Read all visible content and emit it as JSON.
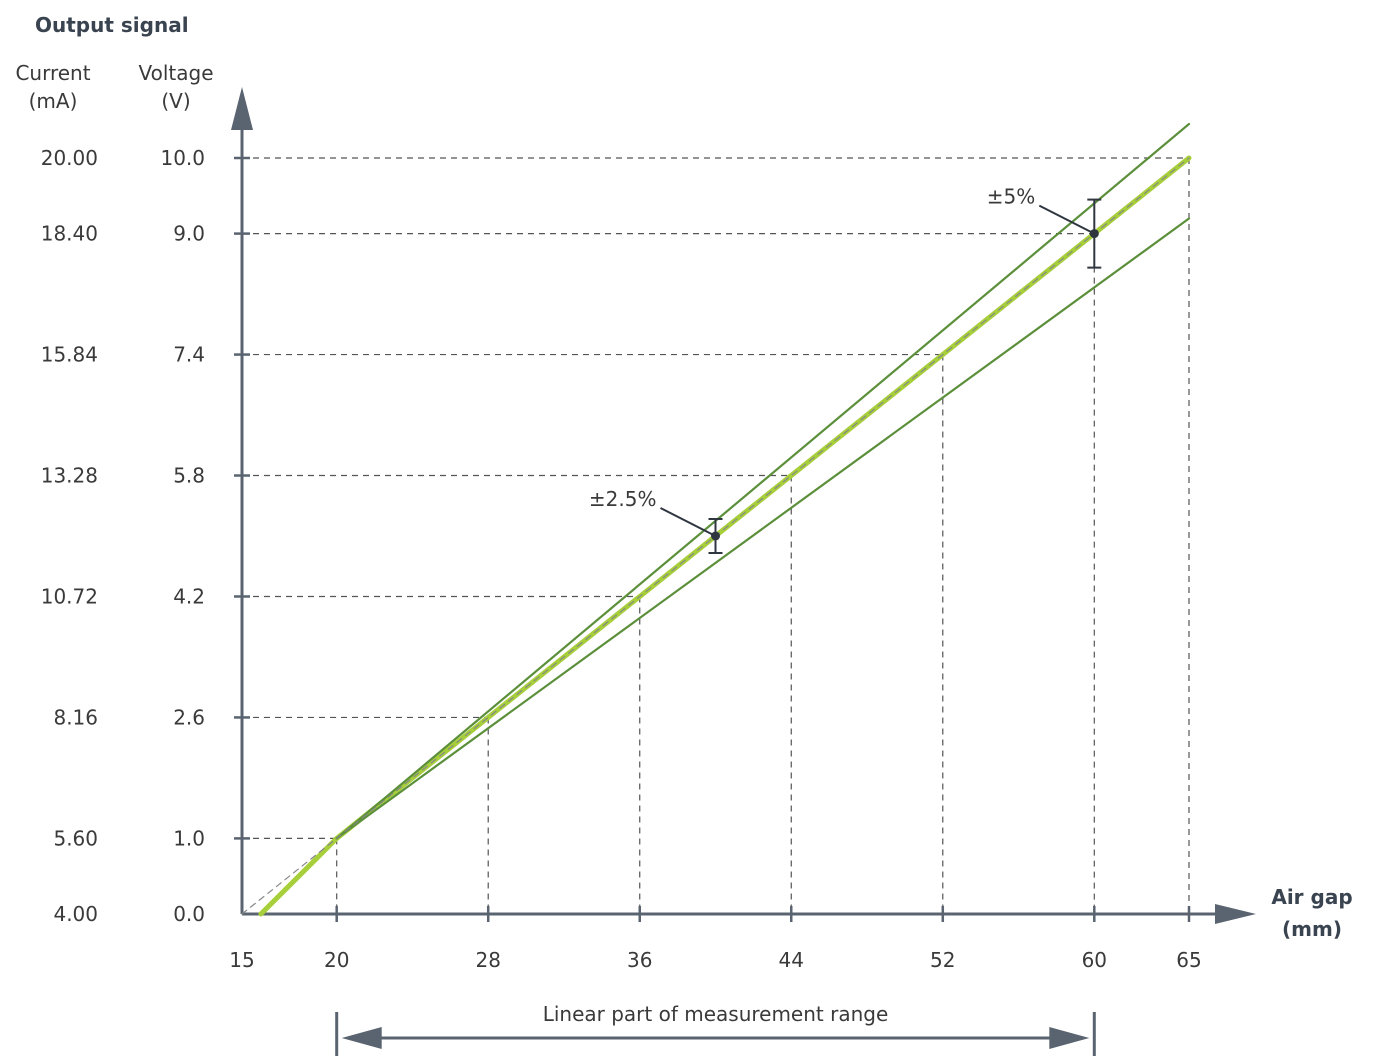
{
  "chart_data": {
    "type": "line",
    "title": "Output signal",
    "y_current_label": [
      "Current",
      "(mA)"
    ],
    "y_voltage_label": [
      "Voltage",
      "(V)"
    ],
    "xlabel": [
      "Air gap",
      "(mm)"
    ],
    "x_ticks": [
      15,
      20,
      28,
      36,
      44,
      52,
      60,
      65
    ],
    "x_tick_labels": [
      "15",
      "20",
      "28",
      "36",
      "44",
      "52",
      "60",
      "65"
    ],
    "y_ticks_voltage": [
      0.0,
      1.0,
      2.6,
      4.2,
      5.8,
      7.4,
      9.0,
      10.0
    ],
    "y_tick_labels_voltage": [
      "0.0",
      "1.0",
      "2.6",
      "4.2",
      "5.8",
      "7.4",
      "9.0",
      "10.0"
    ],
    "y_tick_labels_current": [
      "4.00",
      "5.60",
      "8.16",
      "10.72",
      "13.28",
      "15.84",
      "18.40",
      "20.00"
    ],
    "xlim": [
      15,
      65
    ],
    "ylim": [
      0,
      10
    ],
    "series": [
      {
        "role": "signal",
        "color": "#a6cf3a",
        "points": [
          [
            16,
            0
          ],
          [
            20,
            1.0
          ],
          [
            60,
            9.0
          ],
          [
            65,
            10.0
          ]
        ]
      },
      {
        "role": "upper-tolerance",
        "color": "#5b8f3a",
        "points": [
          [
            20,
            1.0
          ],
          [
            65,
            10.45
          ]
        ]
      },
      {
        "role": "lower-tolerance",
        "color": "#5b8f3a",
        "points": [
          [
            20,
            1.0
          ],
          [
            65,
            9.2
          ]
        ]
      },
      {
        "role": "ideal-reference",
        "color": "#888888",
        "dashed": true,
        "points": [
          [
            15,
            0
          ],
          [
            65,
            10.0
          ]
        ]
      }
    ],
    "guides": [
      {
        "x": 20,
        "y": 1.0
      },
      {
        "x": 28,
        "y": 2.6
      },
      {
        "x": 36,
        "y": 4.2
      },
      {
        "x": 44,
        "y": 5.8
      },
      {
        "x": 52,
        "y": 7.4
      },
      {
        "x": 60,
        "y": 9.0
      },
      {
        "x": 65,
        "y": 10.0
      }
    ],
    "annotations": [
      {
        "text": "±2.5%",
        "x": 40,
        "y": 5.0,
        "err": 0.225
      },
      {
        "text": "±5%",
        "x": 60,
        "y": 9.0,
        "err": 0.45
      }
    ],
    "range_arrow": {
      "text": "Linear part of measurement range",
      "from": 20,
      "to": 60
    }
  }
}
